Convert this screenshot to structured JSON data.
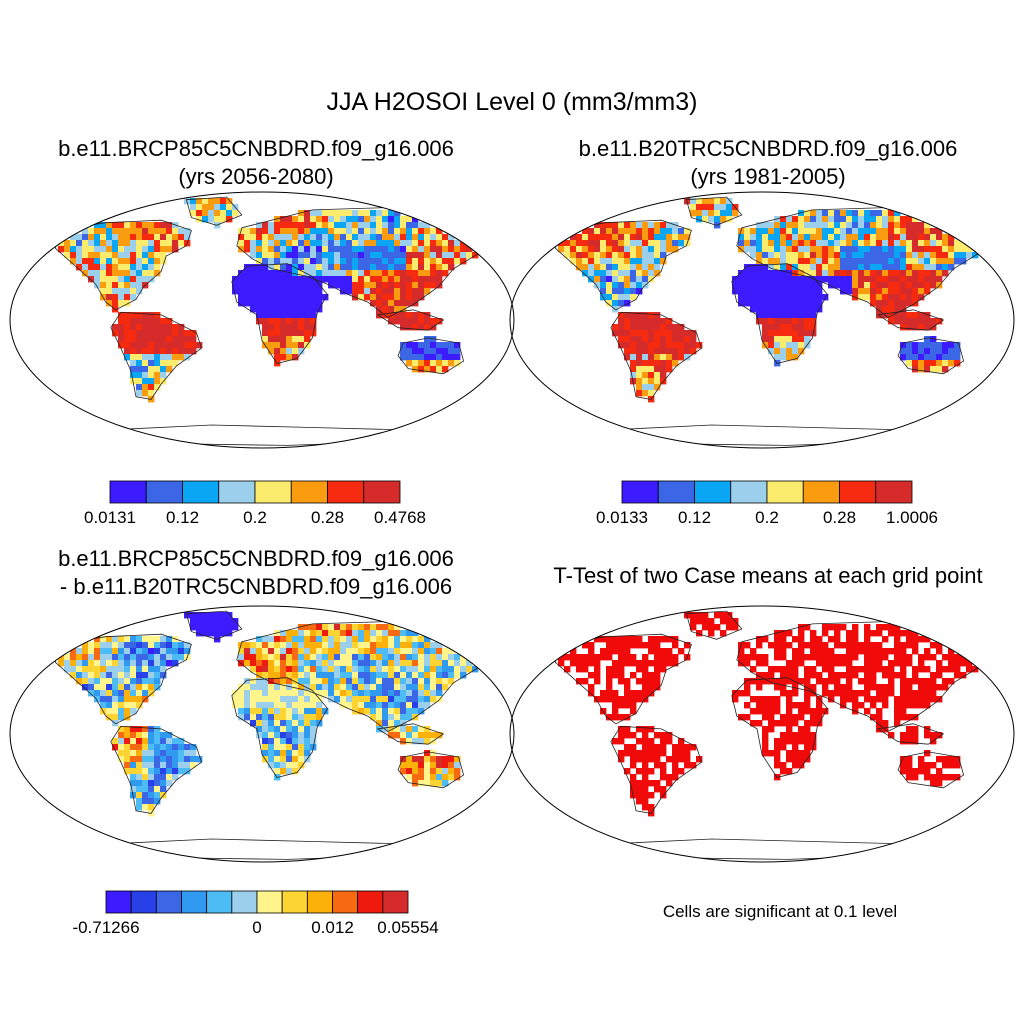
{
  "title": "JJA H2OSOI Level 0 (mm3/mm3)",
  "panels": [
    {
      "title_line1": "b.e11.BRCP85C5CNBDRD.f09_g16.006",
      "title_line2": "(yrs 2056-2080)",
      "palette": [
        "#3c1bff",
        "#3b66e6",
        "#0ba6f3",
        "#9ccfec",
        "#fcec6e",
        "#fa9c0f",
        "#f52a0e",
        "#d52b2b"
      ],
      "colorbar_labels": [
        "0.0131",
        "0.12",
        "0.2",
        "0.28",
        "0.4768"
      ]
    },
    {
      "title_line1": "b.e11.B20TRC5CNBDRD.f09_g16.006",
      "title_line2": "(yrs 1981-2005)",
      "palette": [
        "#3c1bff",
        "#3b66e6",
        "#0ba6f3",
        "#9ccfec",
        "#fcec6e",
        "#fa9c0f",
        "#f52a0e",
        "#d52b2b"
      ],
      "colorbar_labels": [
        "0.0133",
        "0.12",
        "0.2",
        "0.28",
        "1.0006"
      ]
    },
    {
      "title_line1": "b.e11.BRCP85C5CNBDRD.f09_g16.006",
      "title_line2": "- b.e11.B20TRC5CNBDRD.f09_g16.006",
      "palette": [
        "#3c1bff",
        "#2840e8",
        "#3b66e6",
        "#2f9af0",
        "#4dbcf5",
        "#9ccfec",
        "#fff58c",
        "#fcd535",
        "#fbb10a",
        "#f76a12",
        "#ee1a0e",
        "#d52b2b"
      ],
      "colorbar_labels": [
        "-0.71266",
        "0",
        "0.012",
        "0.05554"
      ]
    },
    {
      "title_line1": "T-Test of two Case means at each grid point",
      "title_line2": "",
      "palette": [
        "#f10a0a"
      ],
      "note": "Cells are significant at 0.1 level"
    }
  ]
}
